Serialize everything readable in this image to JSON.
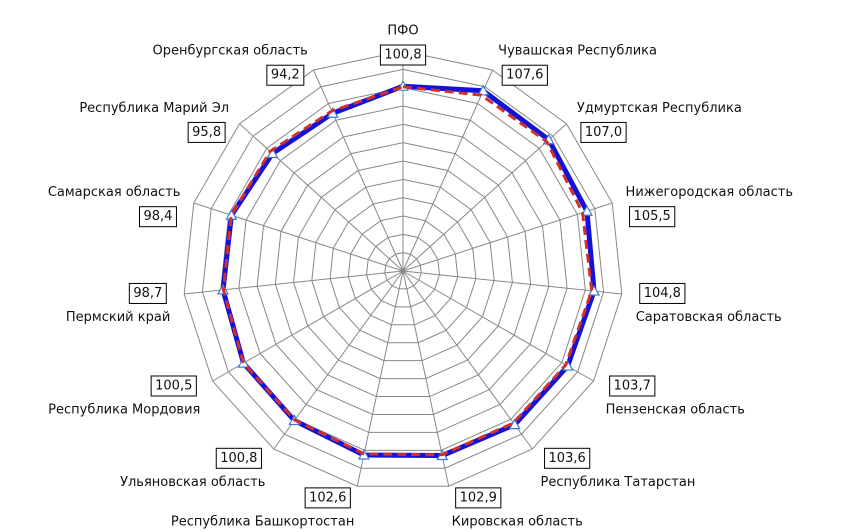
{
  "chart_data": {
    "type": "radar",
    "categories": [
      "ПФО",
      "Чувашская Республика",
      "Удмуртская Республика",
      "Нижегородская область",
      "Саратовская область",
      "Пензенская область",
      "Республика Татарстан",
      "Кировская область",
      "Республика Башкортостан",
      "Ульяновская область",
      "Республика Мордовия",
      "Пермский край",
      "Самарская область",
      "Республика Марий Эл",
      "Оренбургская область"
    ],
    "series": [
      {
        "color": "#1212d8",
        "marker": "triangle",
        "values": [
          100.8,
          107.6,
          107.0,
          105.5,
          104.8,
          103.7,
          103.6,
          102.9,
          102.6,
          100.8,
          100.5,
          98.7,
          98.4,
          95.8,
          94.2
        ],
        "value_labels": [
          "100,8",
          "107,6",
          "107,0",
          "105,5",
          "104,8",
          "103,7",
          "103,6",
          "102,9",
          "102,6",
          "100,8",
          "100,5",
          "98,7",
          "98,4",
          "95,8",
          "94,2"
        ]
      },
      {
        "color": "#d03030",
        "dashed": true,
        "values": [
          100.5,
          105,
          105.5,
          103,
          103.5,
          102.5,
          102.5,
          102.5,
          102,
          100.5,
          100.5,
          98.5,
          98.5,
          97.5,
          95.5
        ]
      }
    ],
    "ylim": [
      0,
      120
    ],
    "yticks": [
      0,
      10,
      20,
      30,
      40,
      50,
      60,
      70,
      80,
      90,
      100,
      110,
      120
    ],
    "grid": true
  }
}
